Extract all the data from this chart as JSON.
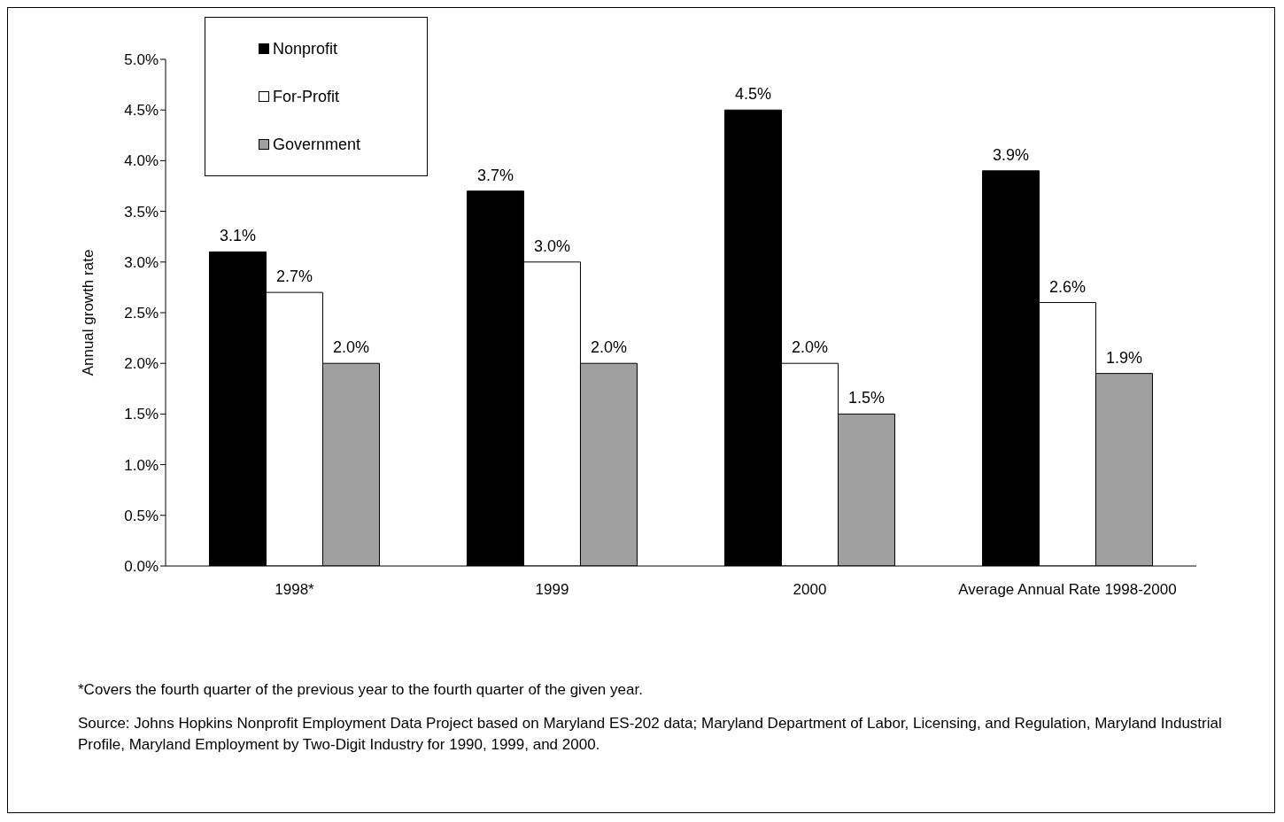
{
  "chart_data": {
    "type": "bar",
    "ylabel": "Annual growth rate",
    "categories": [
      "1998*",
      "1999",
      "2000",
      "Average Annual Rate 1998-2000"
    ],
    "series": [
      {
        "name": "Nonprofit",
        "color": "#000000",
        "values": [
          3.1,
          3.7,
          4.5,
          3.9
        ],
        "value_labels": [
          "3.1%",
          "3.7%",
          "4.5%",
          "3.9%"
        ]
      },
      {
        "name": "For-Profit",
        "color": "#ffffff",
        "values": [
          2.7,
          3.0,
          2.0,
          2.6
        ],
        "value_labels": [
          "2.7%",
          "3.0%",
          "2.0%",
          "2.6%"
        ]
      },
      {
        "name": "Government",
        "color": "#a0a0a0",
        "values": [
          2.0,
          2.0,
          1.5,
          1.9
        ],
        "value_labels": [
          "2.0%",
          "2.0%",
          "1.5%",
          "1.9%"
        ]
      }
    ],
    "ylim": [
      0,
      5
    ],
    "yticks": [
      {
        "value": 0,
        "label": "0.0%"
      },
      {
        "value": 0.5,
        "label": "0.5%"
      },
      {
        "value": 1,
        "label": "1.0%"
      },
      {
        "value": 1.5,
        "label": "1.5%"
      },
      {
        "value": 2,
        "label": "2.0%"
      },
      {
        "value": 2.5,
        "label": "2.5%"
      },
      {
        "value": 3,
        "label": "3.0%"
      },
      {
        "value": 3.5,
        "label": "3.5%"
      },
      {
        "value": 4,
        "label": "4.0%"
      },
      {
        "value": 4.5,
        "label": "4.5%"
      },
      {
        "value": 5,
        "label": "5.0%"
      }
    ],
    "grid": false,
    "legend": "top left",
    "annotations": [
      "*Covers the fourth quarter of the previous year to the fourth quarter of the given year.",
      "Source: Johns Hopkins Nonprofit Employment Data Project based on Maryland ES-202 data; Maryland Department of Labor, Licensing, and Regulation, Maryland Industrial Profile, Maryland Employment by Two-Digit Industry for 1990, 1999, and 2000."
    ]
  }
}
